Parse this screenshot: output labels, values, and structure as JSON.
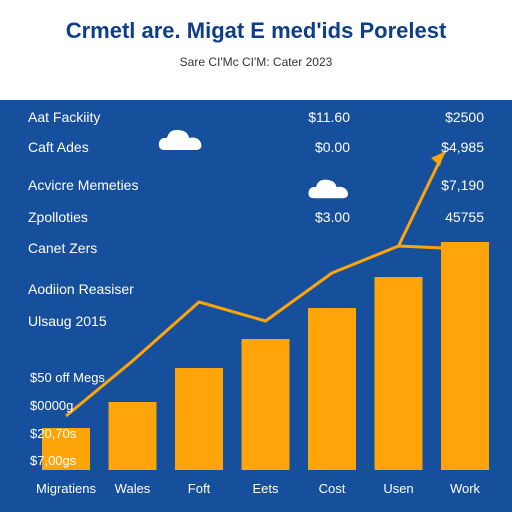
{
  "header": {
    "title": "Crmetl are. Migat E med'ids Porelest",
    "subtitle": "Sare CI'Mc CI'M: Cater 2023"
  },
  "rows": [
    {
      "label": "Aat Fackiity",
      "mid": "$11.60",
      "right": "$2500"
    },
    {
      "label": "Caft Ades",
      "mid": "$0.00",
      "right": "$4,985"
    },
    {
      "label": "Acvicre Memeties",
      "mid": "",
      "right": "$7,190"
    },
    {
      "label": "Zpolloties",
      "mid": "$3.00",
      "right": "45755"
    },
    {
      "label": "Canet Zers",
      "mid": "",
      "right": ""
    },
    {
      "label": "Aodiion Reasiser",
      "mid": "",
      "right": ""
    },
    {
      "label": "Ulsaug 2015",
      "mid": "",
      "right": ""
    }
  ],
  "y_labels": [
    "$50 off Megs",
    "$0000g",
    "$20,70s",
    "$7,00gs"
  ],
  "icons": [
    "cloud-icon",
    "cloud-icon"
  ],
  "colors": {
    "background": "#164f9b",
    "bar": "#ffa50a",
    "line": "#ffa50a",
    "header": "#ffffff",
    "title": "#0e3f86"
  },
  "chart_data": {
    "type": "bar",
    "categories": [
      "Migratiens",
      "Wales",
      "Foft",
      "Eets",
      "Cost",
      "Usen",
      "Work"
    ],
    "values": [
      42,
      68,
      102,
      131,
      162,
      193,
      228
    ],
    "line_values": [
      54,
      109,
      168,
      149,
      197,
      224,
      221
    ],
    "ylim": [
      0,
      300
    ],
    "title": "",
    "xlabel": "",
    "ylabel": ""
  }
}
